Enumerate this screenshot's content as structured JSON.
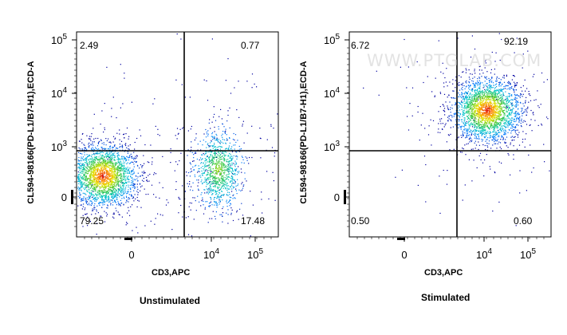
{
  "chart_data": [
    {
      "type": "scatter",
      "title": "",
      "caption": "Unstimulated",
      "xlabel": "CD3,APC",
      "ylabel": "CL594-98166(PD-L1/B7-H1),ECD-A",
      "x_ticks": [
        "0",
        "10^4",
        "10^5"
      ],
      "y_ticks": [
        "0",
        "10^3",
        "10^4",
        "10^5"
      ],
      "quadrants": {
        "upper_left": "2.49",
        "upper_right": "0.77",
        "lower_left": "79.25",
        "lower_right": "17.48"
      },
      "populations": [
        {
          "name": "",
          "x_center": 0.13,
          "y_center": 0.3,
          "density": "high"
        },
        {
          "name": "",
          "x_center": 0.7,
          "y_center": 0.33,
          "density": "medium"
        }
      ]
    },
    {
      "type": "scatter",
      "title": "",
      "caption": "Stimulated",
      "xlabel": "CD3,APC",
      "ylabel": "CL594-98166(PD-L1/B7-H1),ECD-A",
      "x_ticks": [
        "0",
        "10^4",
        "10^5"
      ],
      "y_ticks": [
        "0",
        "10^3",
        "10^4",
        "10^5"
      ],
      "quadrants": {
        "upper_left": "6.72",
        "upper_right": "92.19",
        "lower_left": "0.50",
        "lower_right": "0.60"
      },
      "watermark": "WWW.PTGLAB.COM",
      "populations": [
        {
          "name": "",
          "x_center": 0.68,
          "y_center": 0.62,
          "density": "high"
        }
      ]
    }
  ]
}
